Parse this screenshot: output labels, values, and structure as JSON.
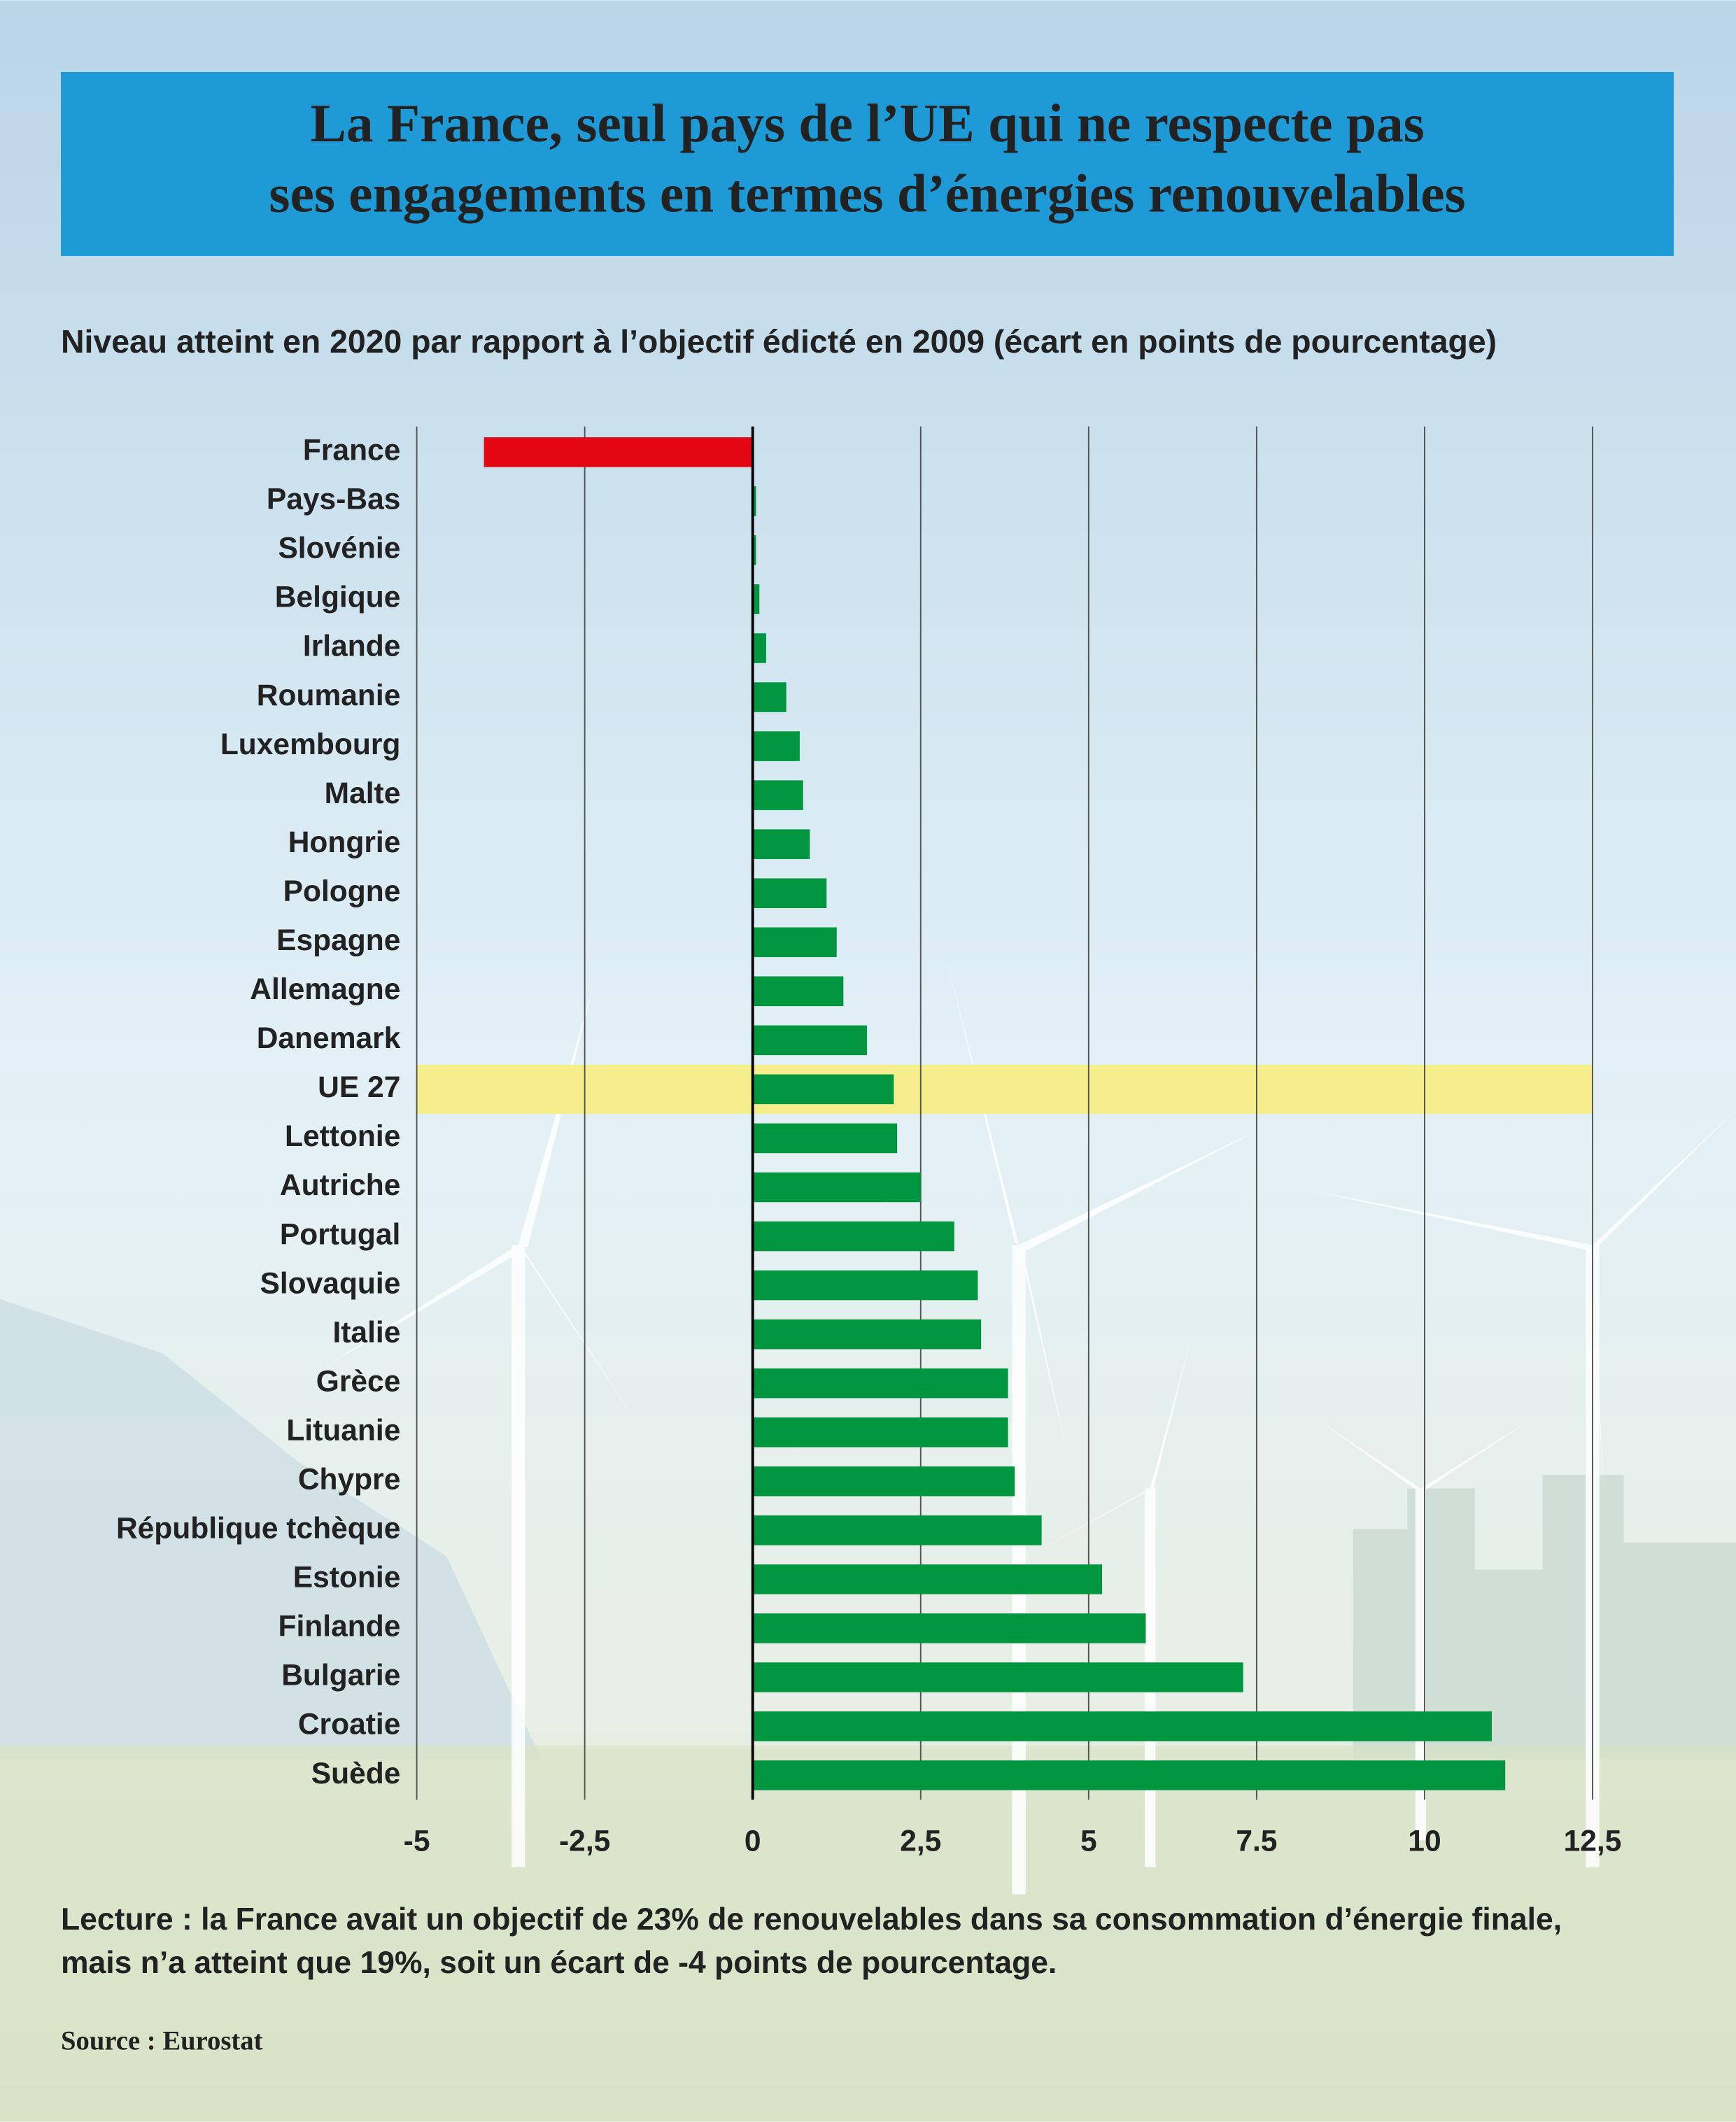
{
  "chart_data": {
    "type": "hbar",
    "title_lines": [
      "La France, seul pays de l’UE qui ne respecte pas",
      "ses engagements en termes d’énergies renouvelables"
    ],
    "subtitle": "Niveau atteint en 2020 par rapport à l’objectif édicté en 2009 (écart en points de pourcentage)",
    "categories": [
      "France",
      "Pays-Bas",
      "Slovénie",
      "Belgique",
      "Irlande",
      "Roumanie",
      "Luxembourg",
      "Malte",
      "Hongrie",
      "Pologne",
      "Espagne",
      "Allemagne",
      "Danemark",
      "UE 27",
      "Lettonie",
      "Autriche",
      "Portugal",
      "Slovaquie",
      "Italie",
      "Grèce",
      "Lituanie",
      "Chypre",
      "République tchèque",
      "Estonie",
      "Finlande",
      "Bulgarie",
      "Croatie",
      "Suède"
    ],
    "values": [
      -4,
      0.05,
      0.05,
      0.1,
      0.2,
      0.5,
      0.7,
      0.75,
      0.85,
      1.1,
      1.25,
      1.35,
      1.7,
      2.1,
      2.15,
      2.5,
      3.0,
      3.35,
      3.4,
      3.8,
      3.8,
      3.9,
      4.3,
      5.2,
      5.85,
      7.3,
      11.0,
      11.2
    ],
    "color": "#009640",
    "negative_color": "#e30613",
    "highlight": "UE 27",
    "highlight_color": "#f6ee8c",
    "xlim": [
      -5,
      12.5
    ],
    "xticks": [
      -5,
      {
        "value": -2.5,
        "label": "-2,5"
      },
      0,
      {
        "value": 2.5,
        "label": "2,5"
      },
      5,
      {
        "value": 7.5,
        "label": "7.5"
      },
      10,
      {
        "value": 12.5,
        "label": "12,5"
      }
    ],
    "grid": true,
    "note_lines": [
      "Lecture : la France avait un objectif de 23% de renouvelables dans sa consommation d’énergie finale,",
      "mais n’a atteint que 19%, soit un écart de -4 points de pourcentage."
    ],
    "source": "Source : Eurostat"
  }
}
